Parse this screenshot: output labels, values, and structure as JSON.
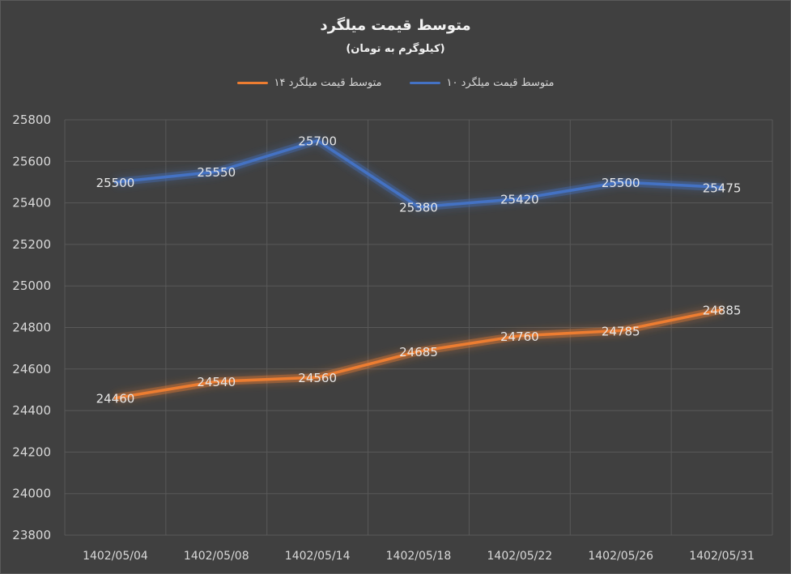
{
  "chart_data": {
    "type": "line",
    "title": "متوسط قیمت میلگرد",
    "subtitle": "(کیلوگرم به تومان)",
    "categories": [
      "1402/05/04",
      "1402/05/08",
      "1402/05/14",
      "1402/05/18",
      "1402/05/22",
      "1402/05/26",
      "1402/05/31"
    ],
    "series": [
      {
        "name": "متوسط قیمت میلگرد ۱۰",
        "color": "#4472c4",
        "values": [
          25500,
          25550,
          25700,
          25380,
          25420,
          25500,
          25475
        ]
      },
      {
        "name": "متوسط قیمت میلگرد ۱۴",
        "color": "#ed7d31",
        "values": [
          24460,
          24540,
          24560,
          24685,
          24760,
          24785,
          24885
        ]
      }
    ],
    "yticks": [
      23800,
      24000,
      24200,
      24400,
      24600,
      24800,
      25000,
      25200,
      25400,
      25600,
      25800
    ],
    "ylim": [
      23800,
      25800
    ],
    "grid": true,
    "legend_position": "top",
    "background": "#404040",
    "gridline_color": "#595959"
  }
}
